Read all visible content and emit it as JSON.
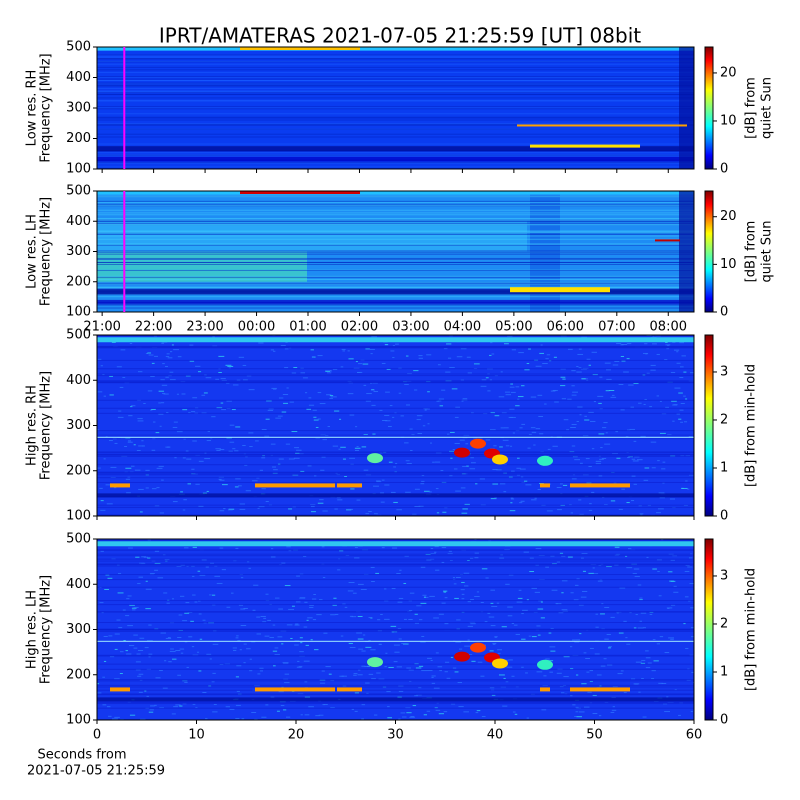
{
  "title": "IPRT/AMATERAS 2021-07-05 21:25:59 [UT]   08bit",
  "chart_data": [
    {
      "type": "heatmap",
      "colormap": "jet",
      "ylabel": [
        "Low res. RH",
        "Frequency [MHz]"
      ],
      "ylim": [
        100,
        500
      ],
      "yticks": [
        100,
        200,
        300,
        400,
        500
      ],
      "xlim": [
        -0.1,
        11.5
      ],
      "xticks": [
        0,
        1,
        2,
        3,
        4,
        5,
        6,
        7,
        8,
        9,
        10,
        11
      ],
      "xtick_labels": false,
      "marker": {
        "x": 0.43,
        "color": "#ff00ff"
      },
      "colorbar": {
        "label": [
          "[dB] from",
          "quiet Sun"
        ],
        "lim": [
          0,
          25.4
        ],
        "ticks": [
          0,
          10,
          20
        ]
      }
    },
    {
      "type": "heatmap",
      "colormap": "jet",
      "ylabel": [
        "Low res. LH",
        "Frequency [MHz]"
      ],
      "ylim": [
        100,
        500
      ],
      "yticks": [
        100,
        200,
        300,
        400,
        500
      ],
      "xlim": [
        -0.1,
        11.5
      ],
      "xticks": [
        {
          "value": 0,
          "label": "21:00"
        },
        {
          "value": 1,
          "label": "22:00"
        },
        {
          "value": 2,
          "label": "23:00"
        },
        {
          "value": 3,
          "label": "00:00"
        },
        {
          "value": 4,
          "label": "01:00"
        },
        {
          "value": 5,
          "label": "02:00"
        },
        {
          "value": 6,
          "label": "03:00"
        },
        {
          "value": 7,
          "label": "04:00"
        },
        {
          "value": 8,
          "label": "05:00"
        },
        {
          "value": 9,
          "label": "06:00"
        },
        {
          "value": 10,
          "label": "07:00"
        },
        {
          "value": 11,
          "label": "08:00"
        }
      ],
      "xtick_labels": true,
      "marker": {
        "x": 0.43,
        "color": "#ff00ff"
      },
      "colorbar": {
        "label": [
          "[dB] from",
          "quiet Sun"
        ],
        "lim": [
          0,
          25.4
        ],
        "ticks": [
          0,
          10,
          20
        ]
      }
    },
    {
      "type": "heatmap",
      "colormap": "jet",
      "ylabel": [
        "High res. RH",
        "Frequency [MHz]"
      ],
      "ylim": [
        100,
        500
      ],
      "yticks": [
        100,
        200,
        300,
        400,
        500
      ],
      "xlim": [
        0,
        60
      ],
      "xticks": [
        0,
        10,
        20,
        30,
        40,
        50,
        60
      ],
      "xtick_labels": false,
      "colorbar": {
        "label": [
          "[dB] from min-hold"
        ],
        "lim": [
          0,
          3.77
        ],
        "ticks": [
          0,
          1,
          2,
          3
        ]
      }
    },
    {
      "type": "heatmap",
      "colormap": "jet",
      "ylabel": [
        "High res. LH",
        "Frequency [MHz]"
      ],
      "ylim": [
        100,
        500
      ],
      "yticks": [
        100,
        200,
        300,
        400,
        500
      ],
      "xlim": [
        0,
        60
      ],
      "xticks": [
        0,
        10,
        20,
        30,
        40,
        50,
        60
      ],
      "xtick_labels": true,
      "xlabel": [
        "Seconds from",
        "2021-07-05 21:25:59"
      ],
      "colorbar": {
        "label": [
          "[dB] from min-hold"
        ],
        "lim": [
          0,
          3.77
        ],
        "ticks": [
          0,
          1,
          2,
          3
        ]
      }
    }
  ]
}
